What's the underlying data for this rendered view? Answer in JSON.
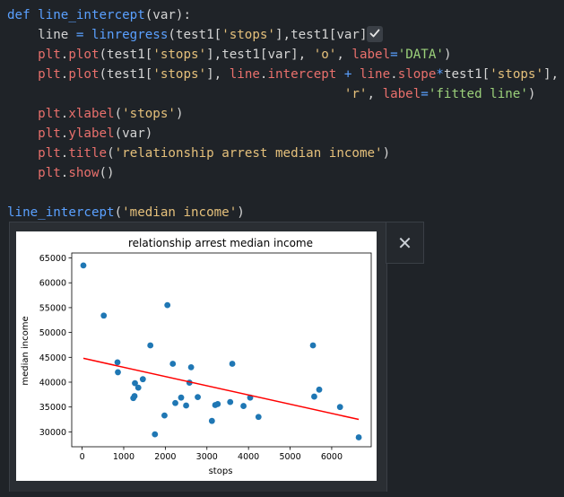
{
  "code_lines": [
    [
      [
        "kw",
        "def "
      ],
      [
        "fn",
        "line_intercept"
      ],
      [
        "var",
        "(var):"
      ]
    ],
    [
      [
        "var",
        "    line "
      ],
      [
        "op",
        "="
      ],
      [
        "var",
        " "
      ],
      [
        "fn",
        "linregress"
      ],
      [
        "var",
        "(test1["
      ],
      [
        "str2",
        "'stops'"
      ],
      [
        "var",
        "],test1[var])"
      ]
    ],
    [
      [
        "var",
        "    "
      ],
      [
        "plt",
        "plt"
      ],
      [
        "var",
        "."
      ],
      [
        "attr",
        "plot"
      ],
      [
        "var",
        "(test1["
      ],
      [
        "str2",
        "'stops'"
      ],
      [
        "var",
        "],test1[var], "
      ],
      [
        "str2",
        "'o'"
      ],
      [
        "var",
        ", "
      ],
      [
        "attr",
        "label"
      ],
      [
        "op",
        "="
      ],
      [
        "str",
        "'DATA'"
      ],
      [
        "var",
        ")"
      ]
    ],
    [
      [
        "var",
        "    "
      ],
      [
        "plt",
        "plt"
      ],
      [
        "var",
        "."
      ],
      [
        "attr",
        "plot"
      ],
      [
        "var",
        "(test1["
      ],
      [
        "str2",
        "'stops'"
      ],
      [
        "var",
        "], "
      ],
      [
        "attr",
        "line"
      ],
      [
        "var",
        "."
      ],
      [
        "attr",
        "intercept"
      ],
      [
        "var",
        " "
      ],
      [
        "op",
        "+"
      ],
      [
        "var",
        " "
      ],
      [
        "attr",
        "line"
      ],
      [
        "var",
        "."
      ],
      [
        "attr",
        "slope"
      ],
      [
        "op",
        "*"
      ],
      [
        "var",
        "test1["
      ],
      [
        "str2",
        "'stops'"
      ],
      [
        "var",
        "],"
      ]
    ],
    [
      [
        "var",
        "                                            "
      ],
      [
        "str2",
        "'r'"
      ],
      [
        "var",
        ", "
      ],
      [
        "attr",
        "label"
      ],
      [
        "op",
        "="
      ],
      [
        "str",
        "'fitted line'"
      ],
      [
        "var",
        ")"
      ]
    ],
    [
      [
        "var",
        "    "
      ],
      [
        "plt",
        "plt"
      ],
      [
        "var",
        "."
      ],
      [
        "attr",
        "xlabel"
      ],
      [
        "var",
        "("
      ],
      [
        "str2",
        "'stops'"
      ],
      [
        "var",
        ")"
      ]
    ],
    [
      [
        "var",
        "    "
      ],
      [
        "plt",
        "plt"
      ],
      [
        "var",
        "."
      ],
      [
        "attr",
        "ylabel"
      ],
      [
        "var",
        "(var)"
      ]
    ],
    [
      [
        "var",
        "    "
      ],
      [
        "plt",
        "plt"
      ],
      [
        "var",
        "."
      ],
      [
        "attr",
        "title"
      ],
      [
        "var",
        "("
      ],
      [
        "str2",
        "'relationship arrest median income'"
      ],
      [
        "var",
        ")"
      ]
    ],
    [
      [
        "var",
        "    "
      ],
      [
        "plt",
        "plt"
      ],
      [
        "var",
        "."
      ],
      [
        "attr",
        "show"
      ],
      [
        "var",
        "()"
      ]
    ],
    [
      [
        "var",
        ""
      ]
    ],
    [
      [
        "fn",
        "line_intercept"
      ],
      [
        "var",
        "("
      ],
      [
        "str2",
        "'median income'"
      ],
      [
        "var",
        ")"
      ]
    ]
  ],
  "check_button": {
    "icon": "checkmark-icon"
  },
  "close_button": {
    "label": "✕"
  },
  "colors": {
    "points": "#1f77b4",
    "fit_line": "#ff0000"
  },
  "chart_data": {
    "type": "scatter",
    "title": "relationship arrest median income",
    "xlabel": "stops",
    "ylabel": "median income",
    "xlim": [
      -250,
      6950
    ],
    "ylim": [
      27000,
      66000
    ],
    "xticks": [
      0,
      1000,
      2000,
      3000,
      4000,
      5000,
      6000
    ],
    "yticks": [
      30000,
      35000,
      40000,
      45000,
      50000,
      55000,
      60000,
      65000
    ],
    "grid": false,
    "series": [
      {
        "marker": "o",
        "points": [
          [
            30,
            63500
          ],
          [
            520,
            53400
          ],
          [
            850,
            44000
          ],
          [
            860,
            42000
          ],
          [
            1230,
            36800
          ],
          [
            1260,
            37200
          ],
          [
            1270,
            39800
          ],
          [
            1350,
            38900
          ],
          [
            1460,
            40600
          ],
          [
            1640,
            47400
          ],
          [
            1750,
            29500
          ],
          [
            1980,
            33300
          ],
          [
            2050,
            55500
          ],
          [
            2180,
            43700
          ],
          [
            2240,
            35800
          ],
          [
            2380,
            36900
          ],
          [
            2500,
            35300
          ],
          [
            2580,
            39900
          ],
          [
            2620,
            43000
          ],
          [
            2780,
            37000
          ],
          [
            3120,
            32200
          ],
          [
            3200,
            35400
          ],
          [
            3260,
            35600
          ],
          [
            3560,
            36000
          ],
          [
            3610,
            43700
          ],
          [
            3880,
            35200
          ],
          [
            4040,
            36900
          ],
          [
            4240,
            33000
          ],
          [
            5550,
            47400
          ],
          [
            5580,
            37100
          ],
          [
            5700,
            38500
          ],
          [
            6200,
            35000
          ],
          [
            6650,
            28900
          ]
        ]
      },
      {
        "line": true,
        "points": [
          [
            30,
            44800
          ],
          [
            6650,
            32500
          ]
        ]
      }
    ]
  }
}
